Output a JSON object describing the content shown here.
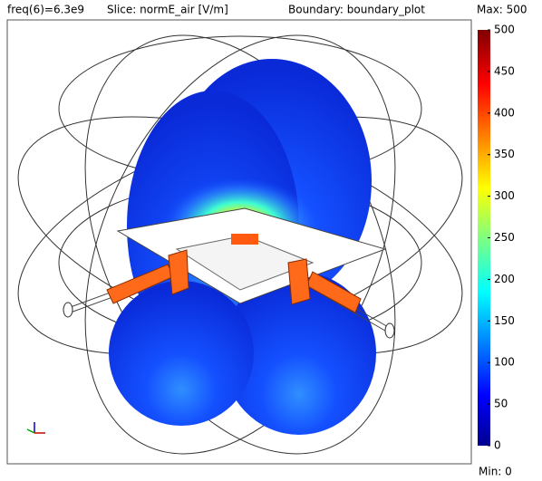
{
  "header": {
    "freq": "freq(6)=6.3e9",
    "slice": "Slice: normE_air [V/m]",
    "boundary": "Boundary: boundary_plot"
  },
  "colorbar": {
    "max_label": "Max: 500",
    "min_label": "Min: 0",
    "range": [
      0,
      500
    ],
    "ticks": [
      0,
      50,
      100,
      150,
      200,
      250,
      300,
      350,
      400,
      450,
      500
    ]
  }
}
